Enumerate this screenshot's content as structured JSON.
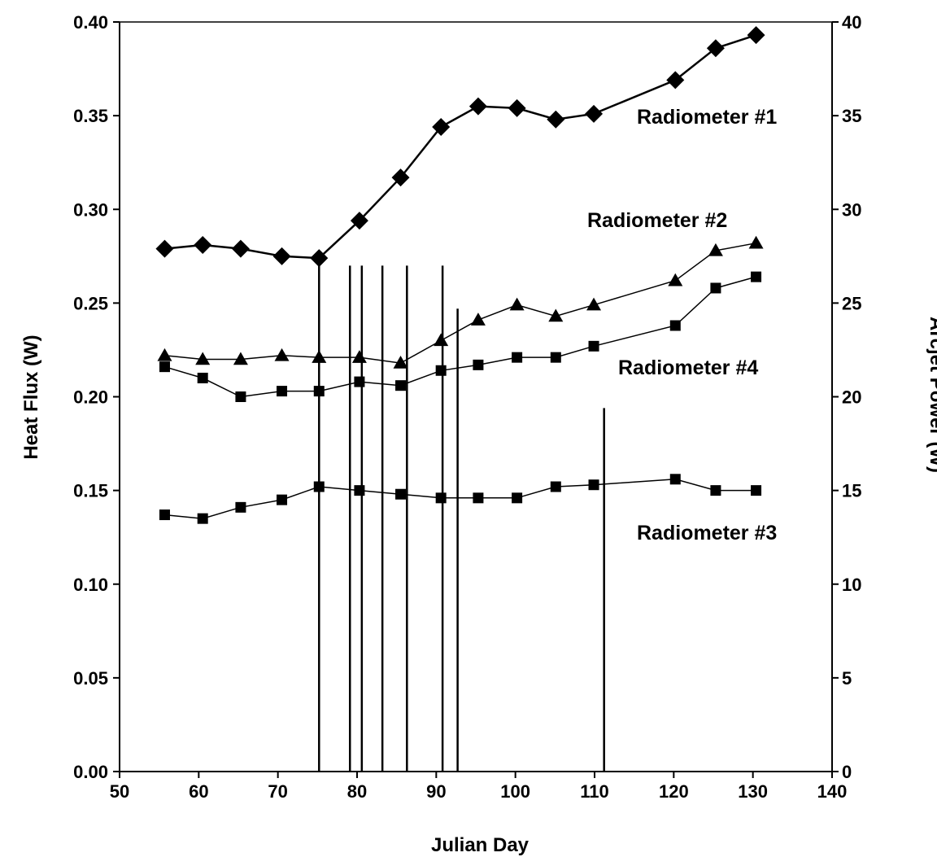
{
  "chart_data": {
    "type": "line",
    "title": "",
    "xlabel": "Julian Day",
    "ylabel_left": "Heat Flux (W)",
    "ylabel_right": "Arcjet Power (W)",
    "xlim": [
      50,
      140
    ],
    "ylim_left": [
      0,
      0.4
    ],
    "ylim_right": [
      0,
      40
    ],
    "x_ticks": [
      50,
      60,
      70,
      80,
      90,
      100,
      110,
      120,
      130,
      140
    ],
    "y_ticks_left": [
      "0.00",
      "0.05",
      "0.10",
      "0.15",
      "0.20",
      "0.25",
      "0.30",
      "0.35",
      "0.40"
    ],
    "y_ticks_right": [
      "0",
      "5",
      "10",
      "15",
      "20",
      "25",
      "30",
      "35",
      "40"
    ],
    "grid": false,
    "legend": "none",
    "series": [
      {
        "name": "Radiometer #1",
        "marker": "diamond",
        "x": [
          55.7,
          60.5,
          65.3,
          70.5,
          75.2,
          80.3,
          85.5,
          90.6,
          95.3,
          100.2,
          105.1,
          109.9,
          120.2,
          125.3,
          130.4
        ],
        "y": [
          0.279,
          0.281,
          0.279,
          0.275,
          0.274,
          0.294,
          0.317,
          0.344,
          0.355,
          0.354,
          0.348,
          0.351,
          0.369,
          0.386,
          0.393
        ]
      },
      {
        "name": "Radiometer #2",
        "marker": "triangle",
        "x": [
          55.7,
          60.5,
          65.3,
          70.5,
          75.2,
          80.3,
          85.5,
          90.6,
          95.3,
          100.2,
          105.1,
          109.9,
          120.2,
          125.3,
          130.4
        ],
        "y": [
          0.222,
          0.22,
          0.22,
          0.222,
          0.221,
          0.221,
          0.218,
          0.23,
          0.241,
          0.249,
          0.243,
          0.249,
          0.262,
          0.278,
          0.282
        ]
      },
      {
        "name": "Radiometer #4",
        "marker": "square",
        "x": [
          55.7,
          60.5,
          65.3,
          70.5,
          75.2,
          80.3,
          85.5,
          90.6,
          95.3,
          100.2,
          105.1,
          109.9,
          120.2,
          125.3,
          130.4
        ],
        "y": [
          0.216,
          0.21,
          0.2,
          0.203,
          0.203,
          0.208,
          0.206,
          0.214,
          0.217,
          0.221,
          0.221,
          0.227,
          0.238,
          0.258,
          0.264
        ]
      },
      {
        "name": "Radiometer #3",
        "marker": "square",
        "x": [
          55.7,
          60.5,
          65.3,
          70.5,
          75.2,
          80.3,
          85.5,
          90.6,
          95.3,
          100.2,
          105.1,
          109.9,
          120.2,
          125.3,
          130.4
        ],
        "y": [
          0.137,
          0.135,
          0.141,
          0.145,
          0.152,
          0.15,
          0.148,
          0.146,
          0.146,
          0.146,
          0.152,
          0.153,
          0.156,
          0.15,
          0.15
        ]
      }
    ],
    "arcjet_power_bars": {
      "x": [
        75.2,
        79.1,
        80.6,
        83.2,
        86.3,
        90.8,
        92.7,
        111.2
      ],
      "y": [
        27.0,
        27.0,
        27.0,
        27.0,
        27.0,
        27.0,
        24.7,
        19.4
      ]
    }
  }
}
